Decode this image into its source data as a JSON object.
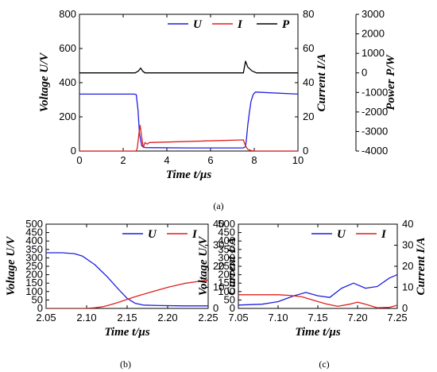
{
  "colors": {
    "U": "#1f1fe0",
    "I": "#e01f1f",
    "P": "#000000"
  },
  "panel_labels": {
    "a": "(a)",
    "b": "(b)",
    "c": "(c)"
  },
  "chart_data": [
    {
      "id": "a",
      "type": "line",
      "xlabel": "Time  t/μs",
      "ylabel_left": "Voltage  U/V",
      "ylabel_right1": "Current  I/A",
      "ylabel_right2": "Power  P/W",
      "xlim": [
        0,
        10
      ],
      "xticks": [
        "0",
        "2",
        "4",
        "6",
        "8",
        "10"
      ],
      "ylim_left": [
        0,
        800
      ],
      "yticks_left": [
        "0",
        "200",
        "400",
        "600",
        "800"
      ],
      "ylim_right1": [
        0,
        80
      ],
      "yticks_right1": [
        "0",
        "20",
        "40",
        "60",
        "80"
      ],
      "ylim_right2": [
        -4000,
        3000
      ],
      "yticks_right2": [
        "-4000",
        "-3000",
        "-2000",
        "-1000",
        "0",
        "1000",
        "2000",
        "3000"
      ],
      "legend": [
        "U",
        "I",
        "P"
      ],
      "legend_position": "top-right",
      "series": [
        {
          "name": "U",
          "axis": "left",
          "x": [
            0,
            2.5,
            2.6,
            2.68,
            2.75,
            2.85,
            3.0,
            5.0,
            7.5,
            7.6,
            7.65,
            7.7,
            7.78,
            7.85,
            7.95,
            8.05,
            10
          ],
          "y": [
            333,
            333,
            330,
            240,
            100,
            30,
            20,
            18,
            18,
            25,
            80,
            150,
            230,
            290,
            330,
            345,
            333
          ]
        },
        {
          "name": "I",
          "axis": "right1",
          "x": [
            0,
            2.6,
            2.65,
            2.72,
            2.78,
            2.85,
            2.92,
            3.0,
            3.1,
            3.2,
            7.5,
            7.6,
            7.7,
            7.8,
            7.9,
            8.0,
            10
          ],
          "y": [
            0,
            0,
            2,
            10,
            15,
            8,
            2,
            5,
            4,
            5,
            6.5,
            3,
            1,
            0.5,
            0.2,
            0,
            0
          ]
        },
        {
          "name": "P",
          "axis": "right2",
          "x": [
            0,
            2.55,
            2.7,
            2.8,
            2.9,
            3.0,
            7.5,
            7.6,
            7.7,
            7.9,
            8.1,
            10
          ],
          "y": [
            0,
            0,
            100,
            250,
            80,
            0,
            0,
            600,
            300,
            100,
            0,
            0
          ]
        }
      ]
    },
    {
      "id": "b",
      "type": "line",
      "xlabel": "Time  t/μs",
      "ylabel_left": "Voltage  U/V",
      "ylabel_right1": "Current  I/A",
      "xlim": [
        2.05,
        2.25
      ],
      "xticks": [
        "2.05",
        "2.10",
        "2.15",
        "2.20",
        "2.25"
      ],
      "ylim_left": [
        0,
        500
      ],
      "yticks_left": [
        "0",
        "50",
        "100",
        "150",
        "200",
        "250",
        "300",
        "350",
        "400",
        "450",
        "500"
      ],
      "ylim_right1": [
        0,
        40
      ],
      "yticks_right1": [
        "0",
        "10",
        "20",
        "30",
        "40"
      ],
      "legend": [
        "U",
        "I"
      ],
      "legend_position": "top-right",
      "series": [
        {
          "name": "U",
          "axis": "left",
          "x": [
            2.05,
            2.07,
            2.085,
            2.095,
            2.11,
            2.125,
            2.14,
            2.15,
            2.16,
            2.17,
            2.19,
            2.22,
            2.25
          ],
          "y": [
            330,
            330,
            325,
            310,
            260,
            190,
            110,
            60,
            30,
            20,
            17,
            15,
            15
          ]
        },
        {
          "name": "I",
          "axis": "right1",
          "x": [
            2.05,
            2.1,
            2.11,
            2.12,
            2.13,
            2.14,
            2.15,
            2.16,
            2.18,
            2.2,
            2.22,
            2.25
          ],
          "y": [
            0,
            0,
            0.3,
            0.8,
            1.8,
            3,
            4.3,
            5.6,
            7.8,
            10,
            11.8,
            13.5
          ]
        }
      ]
    },
    {
      "id": "c",
      "type": "line",
      "xlabel": "Time  t/μs",
      "ylabel_left": "Voltage  U/V",
      "ylabel_right1": "Current  I/A",
      "xlim": [
        7.05,
        7.25
      ],
      "xticks": [
        "7.05",
        "7.10",
        "7.15",
        "7.20",
        "7.25"
      ],
      "ylim_left": [
        0,
        500
      ],
      "yticks_left": [
        "0",
        "50",
        "100",
        "150",
        "200",
        "250",
        "300",
        "350",
        "400",
        "450",
        "500"
      ],
      "ylim_right1": [
        0,
        40
      ],
      "yticks_right1": [
        "0",
        "10",
        "20",
        "30",
        "40"
      ],
      "legend": [
        "U",
        "I"
      ],
      "legend_position": "top-right",
      "series": [
        {
          "name": "U",
          "axis": "left",
          "x": [
            7.05,
            7.08,
            7.1,
            7.12,
            7.135,
            7.15,
            7.165,
            7.18,
            7.195,
            7.21,
            7.225,
            7.24,
            7.25
          ],
          "y": [
            20,
            25,
            40,
            75,
            95,
            75,
            65,
            120,
            150,
            120,
            130,
            180,
            200
          ]
        },
        {
          "name": "I",
          "axis": "right1",
          "x": [
            7.05,
            7.1,
            7.115,
            7.13,
            7.145,
            7.16,
            7.175,
            7.19,
            7.2,
            7.21,
            7.225,
            7.24,
            7.25
          ],
          "y": [
            6.5,
            6.5,
            6.2,
            5.5,
            3.8,
            2.2,
            1,
            2,
            3,
            2,
            0.3,
            0.5,
            1.5
          ]
        }
      ]
    }
  ]
}
